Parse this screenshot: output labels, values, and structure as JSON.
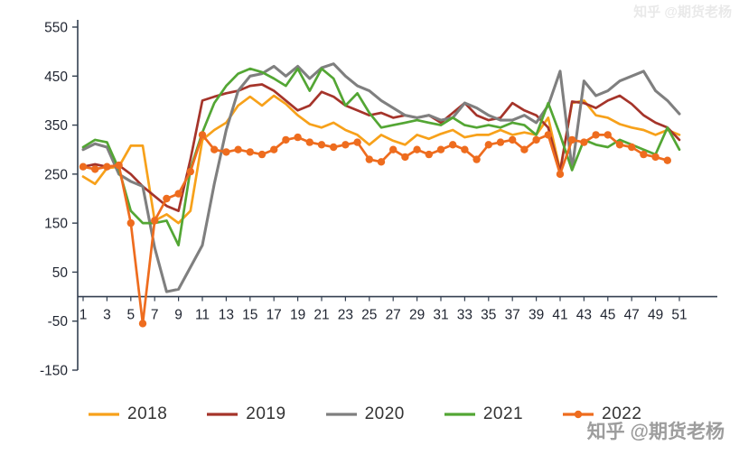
{
  "watermark": {
    "text": "知乎 @期货老杨"
  },
  "chart_data": {
    "type": "line",
    "title": "",
    "xlabel": "",
    "ylabel": "",
    "x_range": [
      1,
      51
    ],
    "y_range": [
      -150,
      550
    ],
    "grid": false,
    "legend_position": "bottom",
    "axis_color": "#333F50",
    "tick_label_color": "#1F2430",
    "y_ticks": [
      550,
      450,
      350,
      250,
      150,
      50,
      -50,
      -150
    ],
    "x_ticks": [
      1,
      3,
      5,
      7,
      9,
      11,
      13,
      15,
      17,
      19,
      21,
      23,
      25,
      27,
      29,
      31,
      33,
      35,
      37,
      39,
      41,
      43,
      45,
      47,
      49,
      51
    ],
    "x": [
      1,
      2,
      3,
      4,
      5,
      6,
      7,
      8,
      9,
      10,
      11,
      12,
      13,
      14,
      15,
      16,
      17,
      18,
      19,
      20,
      21,
      22,
      23,
      24,
      25,
      26,
      27,
      28,
      29,
      30,
      31,
      32,
      33,
      34,
      35,
      36,
      37,
      38,
      39,
      40,
      41,
      42,
      43,
      44,
      45,
      46,
      47,
      48,
      49,
      50,
      51
    ],
    "series": [
      {
        "name": "2018",
        "color": "#F7A11A",
        "marker": false,
        "values": [
          245,
          230,
          262,
          265,
          308,
          308,
          155,
          168,
          150,
          175,
          320,
          340,
          355,
          390,
          408,
          390,
          410,
          393,
          370,
          352,
          345,
          355,
          340,
          330,
          310,
          330,
          318,
          310,
          330,
          322,
          332,
          340,
          325,
          330,
          330,
          340,
          330,
          335,
          330,
          365,
          258,
          395,
          400,
          370,
          365,
          352,
          345,
          340,
          330,
          340,
          330
        ]
      },
      {
        "name": "2019",
        "color": "#A5342A",
        "marker": false,
        "values": [
          265,
          270,
          265,
          268,
          250,
          225,
          205,
          185,
          175,
          280,
          400,
          408,
          415,
          420,
          430,
          433,
          420,
          400,
          380,
          390,
          418,
          408,
          390,
          380,
          370,
          375,
          365,
          370,
          365,
          370,
          355,
          375,
          395,
          370,
          360,
          365,
          395,
          380,
          370,
          345,
          255,
          398,
          395,
          385,
          400,
          410,
          393,
          370,
          355,
          345,
          320
        ]
      },
      {
        "name": "2020",
        "color": "#7F7F7F",
        "marker": false,
        "values": [
          300,
          312,
          305,
          250,
          235,
          225,
          100,
          10,
          15,
          60,
          105,
          230,
          340,
          420,
          450,
          455,
          470,
          450,
          470,
          445,
          467,
          475,
          450,
          430,
          420,
          400,
          385,
          370,
          365,
          370,
          360,
          365,
          395,
          385,
          370,
          360,
          360,
          370,
          355,
          390,
          460,
          260,
          440,
          410,
          420,
          440,
          450,
          460,
          420,
          400,
          373
        ]
      },
      {
        "name": "2021",
        "color": "#53A634",
        "marker": false,
        "values": [
          305,
          320,
          315,
          260,
          175,
          150,
          150,
          155,
          105,
          260,
          335,
          395,
          430,
          455,
          465,
          458,
          445,
          430,
          465,
          420,
          465,
          445,
          390,
          415,
          375,
          345,
          350,
          355,
          360,
          355,
          350,
          365,
          350,
          345,
          350,
          345,
          355,
          350,
          330,
          395,
          330,
          258,
          320,
          310,
          305,
          320,
          310,
          300,
          290,
          345,
          300
        ]
      },
      {
        "name": "2022",
        "color": "#EE6C1E",
        "marker": true,
        "values": [
          265,
          260,
          265,
          268,
          150,
          -55,
          155,
          200,
          210,
          255,
          330,
          300,
          295,
          300,
          295,
          290,
          300,
          320,
          325,
          315,
          310,
          305,
          310,
          315,
          280,
          275,
          300,
          285,
          300,
          290,
          300,
          310,
          300,
          280,
          310,
          315,
          320,
          300,
          320,
          330,
          250,
          320,
          315,
          330,
          330,
          310,
          305,
          290,
          285,
          278,
          null
        ]
      }
    ]
  }
}
